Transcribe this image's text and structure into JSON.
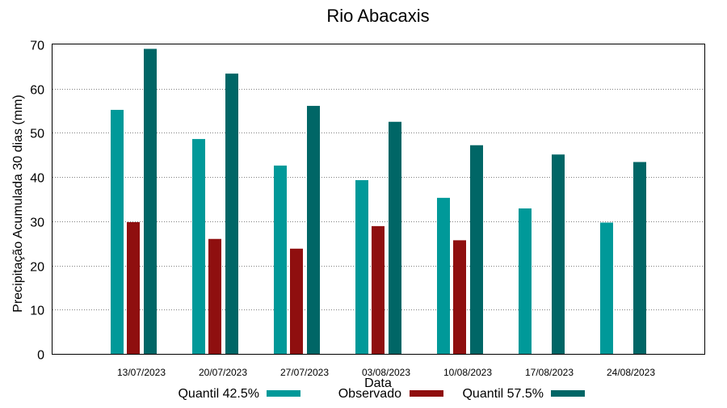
{
  "chart_data": {
    "type": "bar",
    "title": "Rio Abacaxis",
    "xlabel": "Data",
    "ylabel": "Precipitação Acumulada 30 dias (mm)",
    "ylim": [
      0,
      70
    ],
    "yticks": [
      0,
      10,
      20,
      30,
      40,
      50,
      60,
      70
    ],
    "grid": true,
    "legend_position": "bottom",
    "categories": [
      "13/07/2023",
      "20/07/2023",
      "27/07/2023",
      "03/08/2023",
      "10/08/2023",
      "17/08/2023",
      "24/08/2023"
    ],
    "series": [
      {
        "name": "Quantil 42.5%",
        "color": "#009999",
        "values": [
          55.2,
          48.6,
          42.6,
          39.3,
          35.3,
          32.9,
          29.7
        ]
      },
      {
        "name": "Observado",
        "color": "#8f0f0f",
        "values": [
          29.8,
          26.0,
          23.8,
          28.9,
          25.7,
          null,
          null
        ]
      },
      {
        "name": "Quantil 57.5%",
        "color": "#006666",
        "values": [
          69.0,
          63.4,
          56.1,
          52.5,
          47.2,
          45.1,
          43.4
        ]
      }
    ]
  }
}
